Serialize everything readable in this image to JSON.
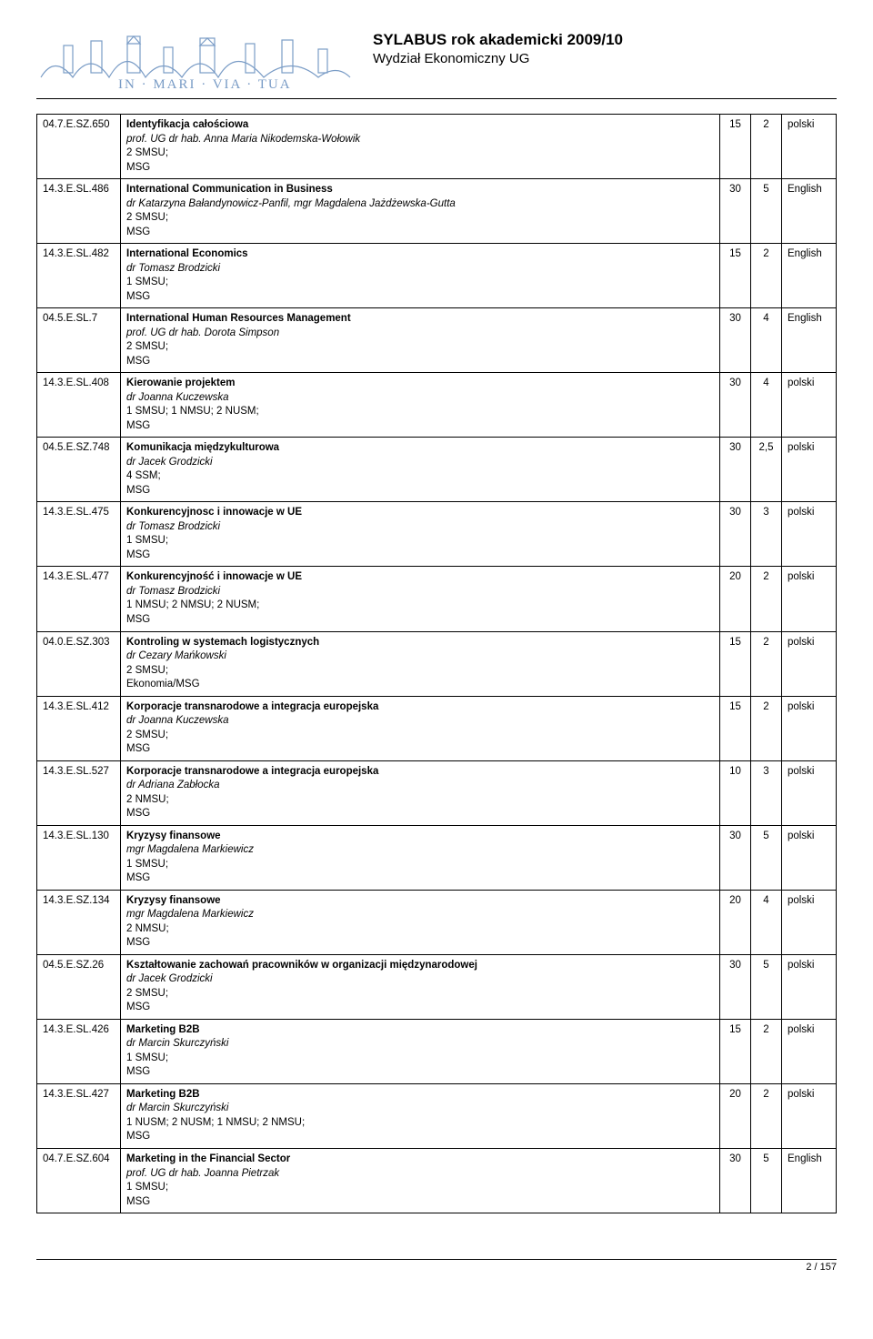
{
  "header": {
    "title": "SYLABUS rok akademicki 2009/10",
    "subtitle": "Wydział Ekonomiczny UG"
  },
  "rows": [
    {
      "code": "04.7.E.SZ.650",
      "name": "Identyfikacja całościowa",
      "instructor": "prof. UG dr hab. Anna Maria Nikodemska-Wołowik",
      "schedule": "2 SMSU;",
      "group": "MSG",
      "hours": "15",
      "ects": "2",
      "lang": "polski"
    },
    {
      "code": "14.3.E.SL.486",
      "name": "International Communication in Business",
      "instructor": "dr Katarzyna Bałandynowicz-Panfil, mgr Magdalena Jażdżewska-Gutta",
      "schedule": "2 SMSU;",
      "group": "MSG",
      "hours": "30",
      "ects": "5",
      "lang": "English"
    },
    {
      "code": "14.3.E.SL.482",
      "name": "International Economics",
      "instructor": "dr Tomasz Brodzicki",
      "schedule": "1 SMSU;",
      "group": "MSG",
      "hours": "15",
      "ects": "2",
      "lang": "English"
    },
    {
      "code": "04.5.E.SL.7",
      "name": "International Human Resources Management",
      "instructor": "prof. UG dr hab. Dorota Simpson",
      "schedule": "2 SMSU;",
      "group": "MSG",
      "hours": "30",
      "ects": "4",
      "lang": "English"
    },
    {
      "code": "14.3.E.SL.408",
      "name": "Kierowanie projektem",
      "instructor": "dr Joanna Kuczewska",
      "schedule": "1 SMSU; 1 NMSU; 2 NUSM;",
      "group": "MSG",
      "hours": "30",
      "ects": "4",
      "lang": "polski"
    },
    {
      "code": "04.5.E.SZ.748",
      "name": "Komunikacja międzykulturowa",
      "instructor": "dr Jacek Grodzicki",
      "schedule": "4 SSM;",
      "group": "MSG",
      "hours": "30",
      "ects": "2,5",
      "lang": "polski"
    },
    {
      "code": "14.3.E.SL.475",
      "name": "Konkurencyjnosc i innowacje w UE",
      "instructor": "dr Tomasz Brodzicki",
      "schedule": "1 SMSU;",
      "group": "MSG",
      "hours": "30",
      "ects": "3",
      "lang": "polski"
    },
    {
      "code": "14.3.E.SL.477",
      "name": "Konkurencyjność i innowacje w UE",
      "instructor": "dr Tomasz Brodzicki",
      "schedule": "1 NMSU; 2 NMSU; 2 NUSM;",
      "group": "MSG",
      "hours": "20",
      "ects": "2",
      "lang": "polski"
    },
    {
      "code": "04.0.E.SZ.303",
      "name": "Kontroling w systemach logistycznych",
      "instructor": "dr Cezary Mańkowski",
      "schedule": "2 SMSU;",
      "group": "Ekonomia/MSG",
      "hours": "15",
      "ects": "2",
      "lang": "polski"
    },
    {
      "code": "14.3.E.SL.412",
      "name": "Korporacje transnarodowe a integracja europejska",
      "instructor": "dr Joanna Kuczewska",
      "schedule": "2 SMSU;",
      "group": "MSG",
      "hours": "15",
      "ects": "2",
      "lang": "polski"
    },
    {
      "code": "14.3.E.SL.527",
      "name": "Korporacje transnarodowe a integracja europejska",
      "instructor": "dr Adriana Zabłocka",
      "schedule": "2 NMSU;",
      "group": "MSG",
      "hours": "10",
      "ects": "3",
      "lang": "polski"
    },
    {
      "code": "14.3.E.SL.130",
      "name": "Kryzysy finansowe",
      "instructor": "mgr Magdalena Markiewicz",
      "schedule": "1 SMSU;",
      "group": "MSG",
      "hours": "30",
      "ects": "5",
      "lang": "polski"
    },
    {
      "code": "14.3.E.SZ.134",
      "name": "Kryzysy finansowe",
      "instructor": "mgr Magdalena Markiewicz",
      "schedule": "2 NMSU;",
      "group": "MSG",
      "hours": "20",
      "ects": "4",
      "lang": "polski"
    },
    {
      "code": "04.5.E.SZ.26",
      "name": "Kształtowanie zachowań pracowników w organizacji międzynarodowej",
      "instructor": "dr Jacek Grodzicki",
      "schedule": "2 SMSU;",
      "group": "MSG",
      "hours": "30",
      "ects": "5",
      "lang": "polski"
    },
    {
      "code": "14.3.E.SL.426",
      "name": "Marketing B2B",
      "instructor": "dr Marcin Skurczyński",
      "schedule": "1 SMSU;",
      "group": "MSG",
      "hours": "15",
      "ects": "2",
      "lang": "polski"
    },
    {
      "code": "14.3.E.SL.427",
      "name": "Marketing B2B",
      "instructor": "dr Marcin Skurczyński",
      "schedule": "1 NUSM; 2 NUSM; 1 NMSU; 2 NMSU;",
      "group": "MSG",
      "hours": "20",
      "ects": "2",
      "lang": "polski"
    },
    {
      "code": "04.7.E.SZ.604",
      "name": "Marketing in the Financial Sector",
      "instructor": "prof. UG dr hab. Joanna Pietrzak",
      "schedule": "1 SMSU;",
      "group": "MSG",
      "hours": "30",
      "ects": "5",
      "lang": "English"
    }
  ],
  "footer": {
    "pagenum": "2 / 157"
  },
  "style": {
    "logo_color": "#7a9cc6",
    "border_color": "#000000",
    "font_color": "#000000",
    "background": "#ffffff"
  }
}
